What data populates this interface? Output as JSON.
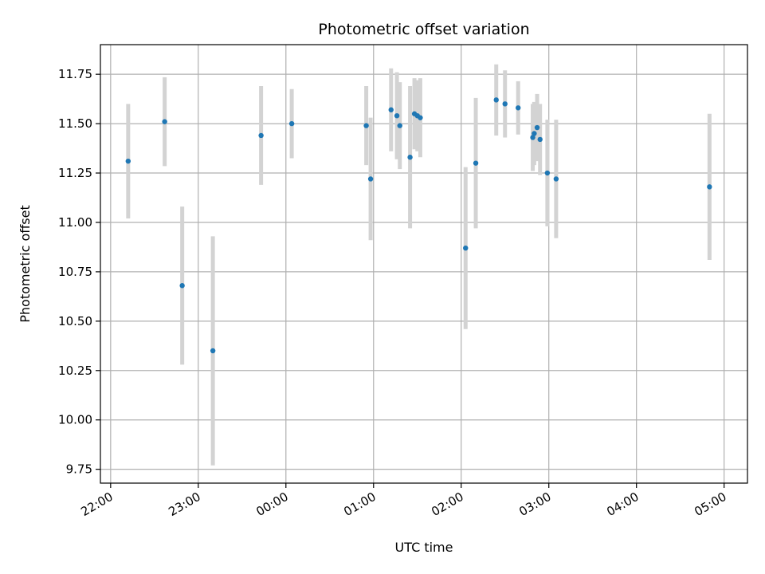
{
  "chart_data": {
    "type": "scatter",
    "title": "Photometric offset variation",
    "xlabel": "UTC time",
    "ylabel": "Photometric offset",
    "x_ticks": [
      "22:00",
      "23:00",
      "00:00",
      "01:00",
      "02:00",
      "03:00",
      "04:00",
      "05:00"
    ],
    "y_ticks": [
      "9.75",
      "10.00",
      "10.25",
      "10.50",
      "10.75",
      "11.00",
      "11.25",
      "11.50",
      "11.75"
    ],
    "xlim": [
      "21:53",
      "05:16"
    ],
    "ylim": [
      9.68,
      11.9
    ],
    "grid": true,
    "marker_color": "#1f77b4",
    "errorbar_color": "#d3d3d3",
    "points": [
      {
        "time": "22:12",
        "y": 11.31,
        "err": 0.29
      },
      {
        "time": "22:37",
        "y": 11.51,
        "err": 0.225
      },
      {
        "time": "22:49",
        "y": 10.68,
        "err": 0.4
      },
      {
        "time": "23:10",
        "y": 10.35,
        "err": 0.58
      },
      {
        "time": "23:43",
        "y": 11.44,
        "err": 0.25
      },
      {
        "time": "00:04",
        "y": 11.5,
        "err": 0.175
      },
      {
        "time": "00:55",
        "y": 11.49,
        "err": 0.2
      },
      {
        "time": "00:58",
        "y": 11.22,
        "err": 0.31
      },
      {
        "time": "01:12",
        "y": 11.57,
        "err": 0.21
      },
      {
        "time": "01:16",
        "y": 11.54,
        "err": 0.22
      },
      {
        "time": "01:18",
        "y": 11.49,
        "err": 0.22
      },
      {
        "time": "01:25",
        "y": 11.33,
        "err": 0.36
      },
      {
        "time": "01:28",
        "y": 11.55,
        "err": 0.18
      },
      {
        "time": "01:30",
        "y": 11.54,
        "err": 0.18
      },
      {
        "time": "01:32",
        "y": 11.53,
        "err": 0.2
      },
      {
        "time": "02:03",
        "y": 10.87,
        "err": 0.41
      },
      {
        "time": "02:10",
        "y": 11.3,
        "err": 0.33
      },
      {
        "time": "02:24",
        "y": 11.62,
        "err": 0.18
      },
      {
        "time": "02:30",
        "y": 11.6,
        "err": 0.17
      },
      {
        "time": "02:39",
        "y": 11.58,
        "err": 0.135
      },
      {
        "time": "02:49",
        "y": 11.43,
        "err": 0.17
      },
      {
        "time": "02:50",
        "y": 11.45,
        "err": 0.16
      },
      {
        "time": "02:52",
        "y": 11.48,
        "err": 0.17
      },
      {
        "time": "02:54",
        "y": 11.42,
        "err": 0.18
      },
      {
        "time": "02:59",
        "y": 11.25,
        "err": 0.27
      },
      {
        "time": "03:05",
        "y": 11.22,
        "err": 0.3
      },
      {
        "time": "04:50",
        "y": 11.18,
        "err": 0.37
      }
    ]
  }
}
